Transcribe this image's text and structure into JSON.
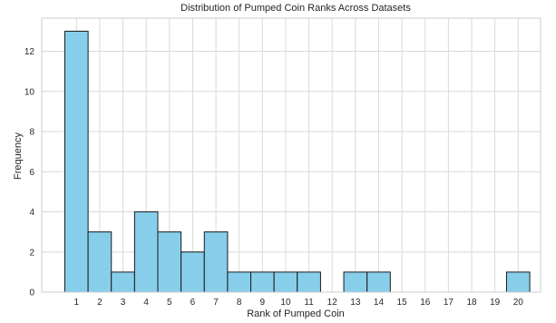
{
  "chart_data": {
    "type": "bar",
    "title": "Distribution of Pumped Coin Ranks Across Datasets",
    "xlabel": "Rank of Pumped Coin",
    "ylabel": "Frequency",
    "categories": [
      "1",
      "2",
      "3",
      "4",
      "5",
      "6",
      "7",
      "8",
      "9",
      "10",
      "11",
      "12",
      "13",
      "14",
      "15",
      "16",
      "17",
      "18",
      "19",
      "20"
    ],
    "values": [
      13,
      3,
      1,
      4,
      3,
      2,
      3,
      1,
      1,
      1,
      1,
      0,
      1,
      1,
      0,
      0,
      0,
      0,
      0,
      1
    ],
    "yticks": [
      0,
      2,
      4,
      6,
      8,
      10,
      12
    ],
    "ylim": [
      0,
      13.65
    ],
    "grid": true,
    "colors": {
      "bar": "#87CEEB",
      "edge": "#1a1a1a",
      "grid": "#d9d9d9",
      "spine": "#cccccc"
    }
  }
}
